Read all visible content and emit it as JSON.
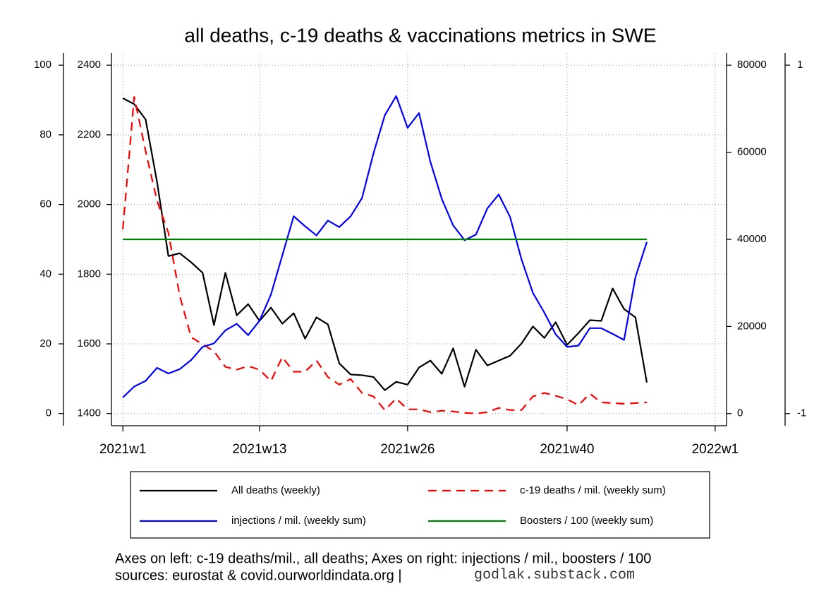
{
  "chart_data": {
    "type": "line",
    "title": "all deaths, c-19 deaths & vaccinations metrics in SWE",
    "x": [
      1,
      2,
      3,
      4,
      5,
      6,
      7,
      8,
      9,
      10,
      11,
      12,
      13,
      14,
      15,
      16,
      17,
      18,
      19,
      20,
      21,
      22,
      23,
      24,
      25,
      26,
      27,
      28,
      29,
      30,
      31,
      32,
      33,
      34,
      35,
      36,
      37,
      38,
      39,
      40,
      41,
      42,
      43,
      44,
      45,
      46,
      47
    ],
    "xlim": [
      0,
      54
    ],
    "xticks": [
      {
        "value": 1,
        "label": "2021w1"
      },
      {
        "value": 13,
        "label": "2021w13"
      },
      {
        "value": 26,
        "label": "2021w26"
      },
      {
        "value": 40,
        "label": "2021w40"
      },
      {
        "value": 53,
        "label": "2022w1"
      }
    ],
    "ylim": [
      -3.5,
      103.5
    ],
    "yticks": [
      0,
      20,
      40,
      60,
      80,
      100
    ],
    "y2lim": [
      1365,
      2435
    ],
    "y2ticks": [
      1400,
      1600,
      1800,
      2000,
      2200,
      2400
    ],
    "y3lim": [
      -2800,
      82800
    ],
    "y3ticks": [
      0,
      20000,
      40000,
      60000,
      80000
    ],
    "y4lim": [
      -1.07,
      1.07
    ],
    "y4ticks": [
      -1,
      1
    ],
    "grid": true,
    "legend_position": "bottom",
    "series": [
      {
        "name": "All deaths (weekly)",
        "color": "#000000",
        "dash": "solid",
        "axis": "y2",
        "values": [
          2305,
          2288,
          2244,
          2065,
          1852,
          1860,
          1834,
          1804,
          1654,
          1804,
          1682,
          1714,
          1666,
          1704,
          1658,
          1688,
          1615,
          1676,
          1656,
          1544,
          1512,
          1510,
          1505,
          1467,
          1491,
          1483,
          1532,
          1552,
          1514,
          1587,
          1477,
          1583,
          1538,
          1552,
          1566,
          1601,
          1650,
          1617,
          1662,
          1597,
          1631,
          1668,
          1666,
          1759,
          1700,
          1676,
          1489
        ]
      },
      {
        "name": "c-19 deaths / mil. (weekly sum)",
        "color": "#ff0000",
        "dash": "dashed",
        "axis": "y",
        "values": [
          52.9,
          90.9,
          75.3,
          61.1,
          51.9,
          33.7,
          21.9,
          19.9,
          17.9,
          13.4,
          12.6,
          13.6,
          12.6,
          9.3,
          16.2,
          12.0,
          12.0,
          15.2,
          10.5,
          8.3,
          9.9,
          5.9,
          4.9,
          1.0,
          4.3,
          1.2,
          1.2,
          0.4,
          0.8,
          0.6,
          0.2,
          0,
          0.4,
          1.6,
          1.0,
          1.0,
          4.9,
          5.9,
          5.1,
          4.1,
          2.4,
          5.7,
          3.2,
          3.0,
          2.8,
          3.0,
          3.2
        ]
      },
      {
        "name": "injections / mil. (weekly sum)",
        "color": "#0000ff",
        "dash": "solid",
        "axis": "y3",
        "values": [
          3700,
          6200,
          7500,
          10500,
          9200,
          10200,
          12300,
          15300,
          16100,
          19100,
          20600,
          18000,
          21300,
          27300,
          36300,
          45300,
          43000,
          40900,
          44300,
          42800,
          45300,
          49500,
          59700,
          68500,
          72900,
          65600,
          69000,
          57800,
          49300,
          43200,
          39800,
          41100,
          47100,
          50300,
          45100,
          35400,
          27700,
          23200,
          18200,
          15300,
          15600,
          19600,
          19600,
          18300,
          16900,
          31300,
          39400
        ]
      },
      {
        "name": "Boosters / 100 (weekly sum)",
        "color": "#008000",
        "dash": "solid",
        "axis": "y4",
        "values": [
          0,
          0,
          0,
          0,
          0,
          0,
          0,
          0,
          0,
          0,
          0,
          0,
          0,
          0,
          0,
          0,
          0,
          0,
          0,
          0,
          0,
          0,
          0,
          0,
          0,
          0,
          0,
          0,
          0,
          0,
          0,
          0,
          0,
          0,
          0,
          0,
          0,
          0,
          0,
          0,
          0,
          0,
          0,
          0,
          0,
          0,
          0
        ]
      }
    ],
    "notes": [
      "Axes on left: c-19 deaths/mil., all deaths; Axes on right: injections / mil., boosters / 100",
      "sources: eurostat & covid.ourworldindata.org |",
      "godlak.substack.com"
    ]
  }
}
